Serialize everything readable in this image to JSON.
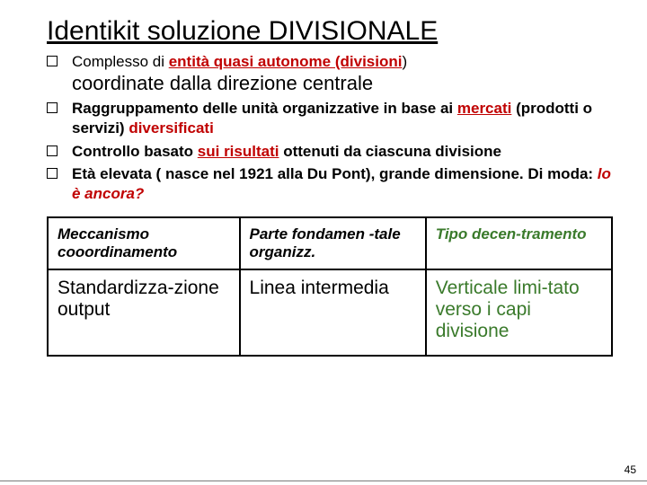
{
  "title": "Identikit  soluzione DIVISIONALE",
  "bullets": {
    "b1_pre": "Complesso di ",
    "b1_hl": "entità quasi autonome (divisioni",
    "b1_paren": ")",
    "b1_line2": "coordinate dalla direzione centrale",
    "b2_a": "Raggruppamento delle unità organizzative in base ai ",
    "b2_hl1": "mercati",
    "b2_b": " (prodotti o servizi) ",
    "b2_hl2": "diversificati",
    "b3_a": "Controllo basato ",
    "b3_hl": "sui risultati",
    "b3_b": " ottenuti da ciascuna divisione",
    "b4_a": "Età elevata ( nasce nel 1921 alla Du Pont), grande dimensione. Di moda: ",
    "b4_hl": "lo è ancora?"
  },
  "table": {
    "header": {
      "c1": "Meccanismo cooordinamento",
      "c2": "Parte fondamen -tale organizz.",
      "c3": "Tipo decen-tramento"
    },
    "row": {
      "c1": "Standardizza-zione output",
      "c2": "Linea intermedia",
      "c3": "Verticale limi-tato verso i capi divisione"
    },
    "widths": {
      "c1": "34%",
      "c2": "33%",
      "c3": "33%"
    }
  },
  "page_number": "45",
  "colors": {
    "text": "#000000",
    "red": "#c00000",
    "green": "#3a7a2b",
    "border": "#000000",
    "background": "#ffffff"
  }
}
